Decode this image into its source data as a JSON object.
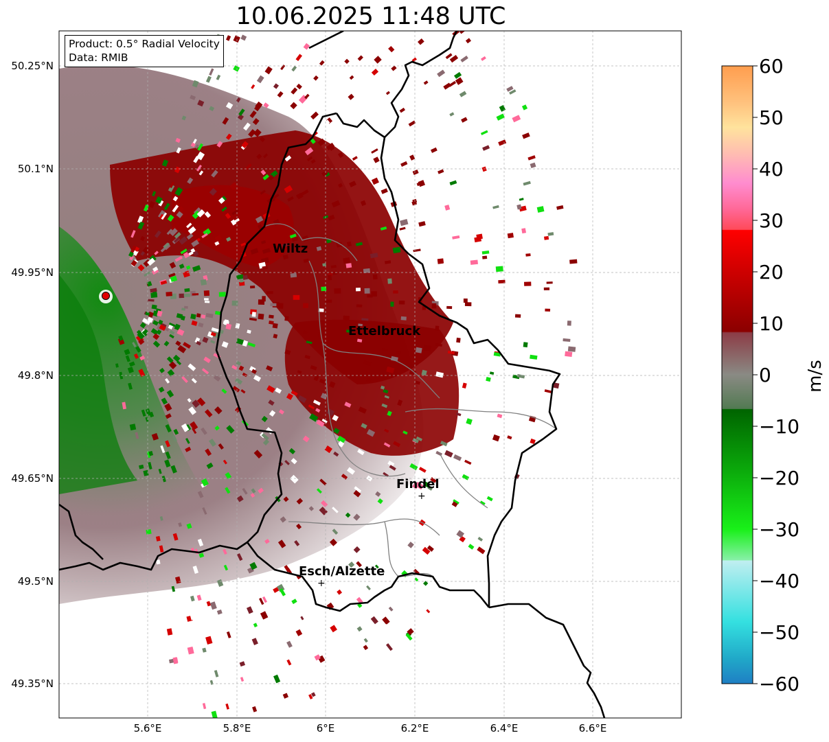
{
  "title": "10.06.2025 11:48 UTC",
  "info": {
    "product": "Product: 0.5° Radial Velocity",
    "data": "Data: RMIB"
  },
  "lon_ticks": [
    "5.6°E",
    "5.8°E",
    "6°E",
    "6.2°E",
    "6.4°E",
    "6.6°E"
  ],
  "lat_ticks": [
    "50.25°N",
    "50.1°N",
    "49.95°N",
    "49.8°N",
    "49.65°N",
    "49.5°N",
    "49.35°N"
  ],
  "cities": [
    "Wiltz",
    "Ettelbruck",
    "Findel",
    "Esch/Alzette"
  ],
  "colorbar": {
    "label": "m/s",
    "ticks": [
      "60",
      "50",
      "40",
      "30",
      "20",
      "10",
      "0",
      "−10",
      "−20",
      "−30",
      "−40",
      "−50",
      "−60"
    ],
    "range": [
      -60,
      60
    ]
  },
  "colors": {
    "outward_dark_red": "#8b0000",
    "outward_red": "#d50000",
    "neutral_mauve": "#8a6a70",
    "neutral_gray_green": "#6f8a6c",
    "inward_dark_green": "#007a00",
    "inward_bright_green": "#10e010",
    "radar_marker": "#e00000",
    "border": "#000000",
    "canton_lines": "#808080"
  }
}
